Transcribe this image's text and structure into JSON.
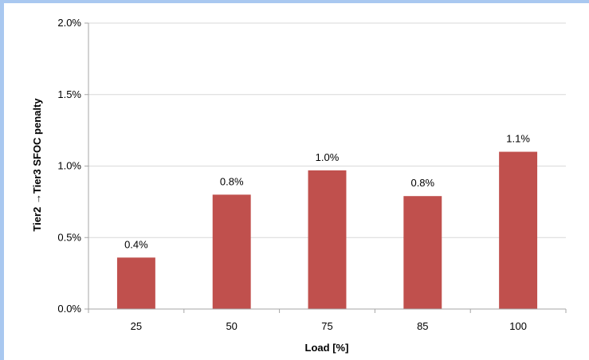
{
  "colors": {
    "bar": "#c0504d",
    "frame_accent": "#a9c8f0",
    "grid": "#d9d9d9",
    "axis": "#a6a6a6"
  },
  "chart_data": {
    "type": "bar",
    "categories": [
      "25",
      "50",
      "75",
      "85",
      "100"
    ],
    "values": [
      0.36,
      0.8,
      0.97,
      0.79,
      1.1
    ],
    "data_labels": [
      "0.4%",
      "0.8%",
      "1.0%",
      "0.8%",
      "1.1%"
    ],
    "y_ticks": [
      0,
      0.5,
      1.0,
      1.5,
      2.0
    ],
    "y_tick_labels": [
      "0.0%",
      "0.5%",
      "1.0%",
      "1.5%",
      "2.0%"
    ],
    "ylim": [
      0,
      2.0
    ],
    "ylabel": "Tier2 →Tier3  SFOC penalty",
    "xlabel": "Load  [%]",
    "grid": true,
    "legend": "none"
  }
}
